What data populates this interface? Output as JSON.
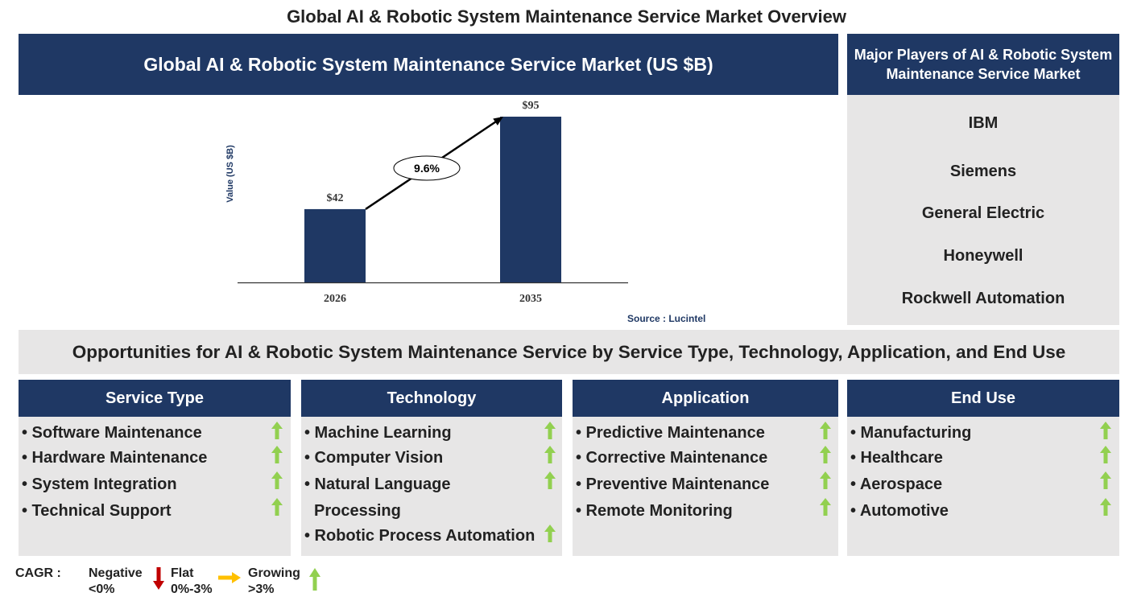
{
  "page_title": "Global AI & Robotic System Maintenance Service Market Overview",
  "chart_header": "Global AI & Robotic System Maintenance Service Market (US $B)",
  "chart_data": {
    "type": "bar",
    "categories": [
      "2026",
      "2035"
    ],
    "values": [
      42,
      95
    ],
    "value_labels": [
      "$42",
      "$95"
    ],
    "ylabel": "Value (US $B)",
    "cagr_label": "9.6%",
    "ylim": [
      0,
      100
    ],
    "bar_color": "#1f3864",
    "grid": false
  },
  "source": "Source : Lucintel",
  "players": {
    "header": "Major Players of AI & Robotic System Maintenance Service Market",
    "list": [
      "IBM",
      "Siemens",
      "General Electric",
      "Honeywell",
      "Rockwell Automation"
    ]
  },
  "opportunities_title": "Opportunities for AI & Robotic System Maintenance Service by Service Type, Technology, Application, and End Use",
  "categories": [
    {
      "title": "Service Type",
      "items": [
        "• Software Maintenance",
        "• Hardware Maintenance",
        "• System Integration",
        "• Technical Support"
      ]
    },
    {
      "title": "Technology",
      "items": [
        "• Machine Learning",
        "• Computer Vision",
        "• Natural Language",
        "Processing",
        "• Robotic Process Automation"
      ]
    },
    {
      "title": "Application",
      "items": [
        "• Predictive Maintenance",
        "• Corrective Maintenance",
        "• Preventive Maintenance",
        "• Remote Monitoring"
      ]
    },
    {
      "title": "End Use",
      "items": [
        "• Manufacturing",
        "• Healthcare",
        "• Aerospace",
        "• Automotive"
      ]
    }
  ],
  "legend": {
    "label": "CAGR :",
    "negative": [
      "Negative",
      "<0%"
    ],
    "flat": [
      "Flat",
      "0%-3%"
    ],
    "growing": [
      "Growing",
      ">3%"
    ]
  },
  "colors": {
    "navy": "#1f3864",
    "panel_grey": "#e7e6e6",
    "growing_arrow": "#92d050",
    "negative_arrow": "#c00000",
    "flat_arrow": "#ffc000"
  },
  "icons": {
    "growing": "green-up-arrow-icon",
    "negative": "red-down-arrow-icon",
    "flat": "yellow-right-arrow-icon"
  }
}
